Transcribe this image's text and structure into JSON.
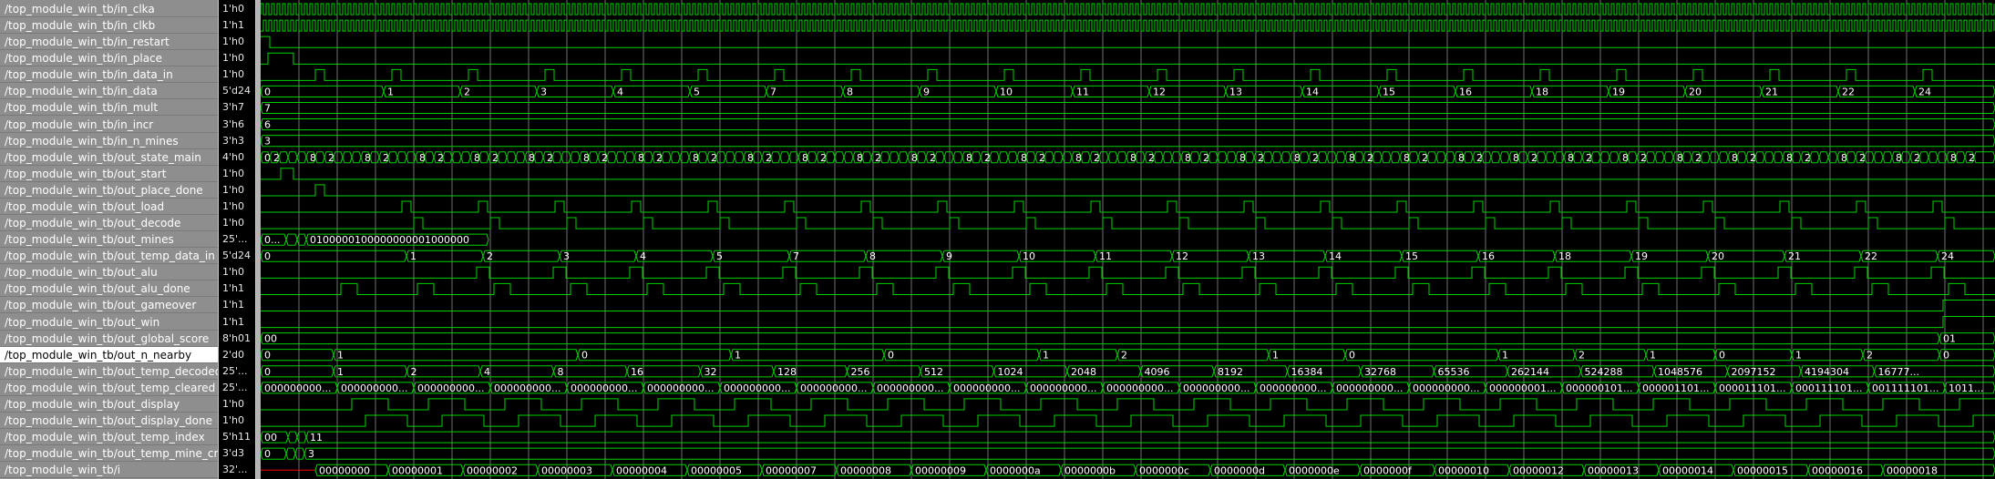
{
  "colors": {
    "signal": "#00d200",
    "grid": "#bcbcbc",
    "names_bg": "#8e8e8e",
    "selected_bg": "#ffffff",
    "cursor": "#ff0000",
    "text": "#ffffff"
  },
  "selected_signal": "/top_module_win_tb/out_n_nearby",
  "signals": [
    {
      "name": "/top_module_win_tb/in_clka",
      "value": "1'h0",
      "kind": "clock",
      "period": 6
    },
    {
      "name": "/top_module_win_tb/in_clkb",
      "value": "1'h1",
      "kind": "clock",
      "period": 6,
      "phase": 3
    },
    {
      "name": "/top_module_win_tb/in_restart",
      "value": "1'h0",
      "kind": "bit",
      "start": 1,
      "toggles": [
        10
      ]
    },
    {
      "name": "/top_module_win_tb/in_place",
      "value": "1'h0",
      "kind": "bit",
      "start": 0,
      "toggles": [
        8,
        36
      ]
    },
    {
      "name": "/top_module_win_tb/in_data_in",
      "value": "1'h0",
      "kind": "pulses",
      "offset": 60,
      "step": 84,
      "width": 10,
      "count": 23
    },
    {
      "name": "/top_module_win_tb/in_data",
      "value": "5'd24",
      "kind": "bus",
      "labels": [
        "0",
        "1",
        "2",
        "3",
        "4",
        "5",
        "7",
        "8",
        "9",
        "10",
        "11",
        "12",
        "13",
        "14",
        "15",
        "16",
        "18",
        "19",
        "20",
        "21",
        "22",
        "24"
      ],
      "first": 0,
      "offset": 135,
      "step": 84
    },
    {
      "name": "/top_module_win_tb/in_mult",
      "value": "3'h7",
      "kind": "bus",
      "labels": [
        "7"
      ],
      "first": 0
    },
    {
      "name": "/top_module_win_tb/in_incr",
      "value": "3'h6",
      "kind": "bus",
      "labels": [
        "6"
      ],
      "first": 0
    },
    {
      "name": "/top_module_win_tb/in_n_mines",
      "value": "3'h3",
      "kind": "bus",
      "labels": [
        "3"
      ],
      "first": 0
    },
    {
      "name": "/top_module_win_tb/out_state_main",
      "value": "4'h0",
      "kind": "fsm",
      "labels": [
        "0",
        "2",
        "8",
        "0"
      ]
    },
    {
      "name": "/top_module_win_tb/out_start",
      "value": "1'h0",
      "kind": "bit",
      "start": 0,
      "toggles": [
        22,
        36
      ]
    },
    {
      "name": "/top_module_win_tb/out_place_done",
      "value": "1'h0",
      "kind": "bit",
      "start": 0,
      "toggles": [
        60,
        70
      ]
    },
    {
      "name": "/top_module_win_tb/out_load",
      "value": "1'h0",
      "kind": "pulses",
      "offset": 155,
      "step": 84,
      "width": 10,
      "count": 22
    },
    {
      "name": "/top_module_win_tb/out_decode",
      "value": "1'h0",
      "kind": "pulses",
      "offset": 168,
      "step": 84,
      "width": 10,
      "count": 22
    },
    {
      "name": "/top_module_win_tb/out_mines",
      "value": "25'...",
      "kind": "bus",
      "labels": [
        "0...",
        "",
        "",
        "0100000100000000001000000"
      ],
      "positions": [
        0,
        28,
        40,
        50
      ],
      "end": 250
    },
    {
      "name": "/top_module_win_tb/out_temp_data_in",
      "value": "5'd24",
      "kind": "bus",
      "labels": [
        "0",
        "1",
        "2",
        "3",
        "4",
        "5",
        "7",
        "8",
        "9",
        "10",
        "11",
        "12",
        "13",
        "14",
        "15",
        "16",
        "18",
        "19",
        "20",
        "21",
        "22",
        "24"
      ],
      "first": 0,
      "offset": 160,
      "step": 84
    },
    {
      "name": "/top_module_win_tb/out_alu",
      "value": "1'h0",
      "kind": "pulses",
      "offset": 237,
      "step": 84,
      "width": 14,
      "count": 22
    },
    {
      "name": "/top_module_win_tb/out_alu_done",
      "value": "1'h1",
      "kind": "pulses",
      "offset": 88,
      "step": 84,
      "width": 18,
      "count": 22
    },
    {
      "name": "/top_module_win_tb/out_gameover",
      "value": "1'h1",
      "kind": "bit",
      "start": 0,
      "toggles": [
        1846
      ]
    },
    {
      "name": "/top_module_win_tb/out_win",
      "value": "1'h1",
      "kind": "bit",
      "start": 0,
      "toggles": [
        1846
      ]
    },
    {
      "name": "/top_module_win_tb/out_global_score",
      "value": "8'h01",
      "kind": "bus",
      "labels": [
        "00",
        "01"
      ],
      "positions": [
        0,
        1842
      ]
    },
    {
      "name": "/top_module_win_tb/out_n_nearby",
      "value": "2'd0",
      "kind": "bus",
      "labels": [
        "0",
        "1",
        "0",
        "1",
        "0",
        "1",
        "2",
        "1",
        "0",
        "1",
        "2",
        "1",
        "0",
        "1",
        "2",
        "0"
      ],
      "positions": [
        0,
        80,
        348,
        516,
        684,
        854,
        940,
        1106,
        1190,
        1358,
        1442,
        1520,
        1596,
        1680,
        1758,
        1842
      ]
    },
    {
      "name": "/top_module_win_tb/out_temp_decoded",
      "value": "25'...",
      "kind": "bus",
      "labels": [
        "0",
        "1",
        "2",
        "4",
        "8",
        "16",
        "32",
        "128",
        "256",
        "512",
        "1024",
        "2048",
        "4096",
        "8192",
        "16384",
        "32768",
        "65536",
        "262144",
        "524288",
        "1048576",
        "2097152",
        "4194304",
        "16777..."
      ],
      "first": 0,
      "offset": 80,
      "step": 80.5
    },
    {
      "name": "/top_module_win_tb/out_temp_cleared",
      "value": "25'...",
      "kind": "bus",
      "labels": [
        "000000000...",
        "000000000...",
        "000000000...",
        "000000000...",
        "000000000...",
        "000000000...",
        "000000000...",
        "000000000...",
        "000000000...",
        "000000000...",
        "000000000...",
        "000000000...",
        "000000000...",
        "000000000...",
        "000000000...",
        "000000000...",
        "000000001...",
        "000000101...",
        "000001101...",
        "000011101...",
        "000111101...",
        "001111101...",
        "1011..."
      ],
      "first": 0,
      "offset": 84,
      "step": 84
    },
    {
      "name": "/top_module_win_tb/out_display",
      "value": "1'h0",
      "kind": "pulses",
      "offset": 100,
      "step": 84,
      "width": 40,
      "count": 22
    },
    {
      "name": "/top_module_win_tb/out_display_done",
      "value": "1'h0",
      "kind": "pulses",
      "offset": 115,
      "step": 84,
      "width": 46,
      "count": 22
    },
    {
      "name": "/top_module_win_tb/out_temp_index",
      "value": "5'h11",
      "kind": "bus",
      "labels": [
        "00",
        "",
        "",
        "11"
      ],
      "positions": [
        0,
        30,
        40,
        50
      ],
      "end": 1903
    },
    {
      "name": "/top_module_win_tb/out_temp_mine_cnt",
      "value": "3'd3",
      "kind": "bus",
      "labels": [
        "0",
        "",
        "",
        "3"
      ],
      "positions": [
        0,
        28,
        38,
        48
      ],
      "end": 1903
    },
    {
      "name": "/top_module_win_tb/i",
      "value": "32'...",
      "kind": "bus",
      "labels": [
        "00000000",
        "00000001",
        "00000002",
        "00000003",
        "00000004",
        "00000005",
        "00000007",
        "00000008",
        "00000009",
        "0000000a",
        "0000000b",
        "0000000c",
        "0000000d",
        "0000000e",
        "0000000f",
        "00000010",
        "00000012",
        "00000013",
        "00000014",
        "00000015",
        "00000016",
        "00000018"
      ],
      "first": 60,
      "offset": 140,
      "step": 82
    }
  ]
}
